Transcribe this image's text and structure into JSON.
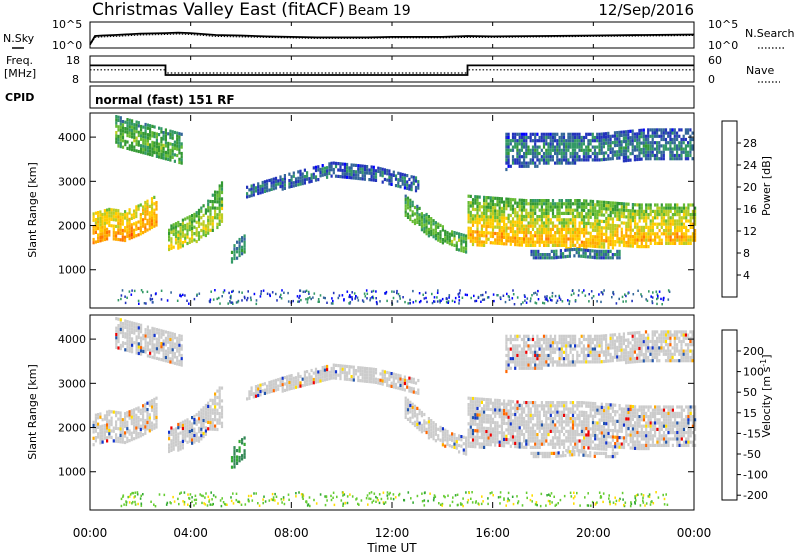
{
  "title": "Christmas Valley East (fitACF)",
  "beam_label": "Beam 19",
  "date": "12/Sep/2016",
  "noise_panel": {
    "left_label": "N.Sky",
    "right_label": "N.Search",
    "left_ticks": [
      "10^5",
      "10^0"
    ],
    "right_ticks": [
      "10^5",
      "10^0"
    ]
  },
  "freq_panel": {
    "left_label_line1": "Freq.",
    "left_label_line2": "[MHz]",
    "right_label": "Nave",
    "left_ticks": [
      "18",
      "8"
    ],
    "right_ticks": [
      "60",
      "0"
    ]
  },
  "cpid": {
    "label": "CPID",
    "value": "normal (fast) 151 RF"
  },
  "chart_data": [
    {
      "type": "line",
      "name": "noise",
      "x_hours": [
        0,
        0.2,
        0.5,
        1,
        2,
        3,
        3.5,
        4,
        5,
        6,
        7,
        8,
        9,
        10,
        11,
        12,
        13,
        14,
        15,
        16,
        18,
        20,
        22,
        24
      ],
      "sky_log": [
        0.5,
        2.3,
        2.4,
        2.5,
        2.8,
        2.9,
        3.0,
        2.9,
        2.5,
        2.4,
        2.2,
        2.1,
        2.0,
        2.0,
        2.0,
        2.1,
        2.1,
        2.1,
        2.3,
        2.2,
        2.3,
        2.4,
        2.5,
        2.6
      ],
      "search_log": [
        0.4,
        2.0,
        2.1,
        2.2,
        2.5,
        2.6,
        2.7,
        2.6,
        2.2,
        2.1,
        2.0,
        1.9,
        1.8,
        1.8,
        1.8,
        1.9,
        1.9,
        1.9,
        2.0,
        2.0,
        2.1,
        2.2,
        2.3,
        2.4
      ]
    },
    {
      "type": "line",
      "name": "frequency",
      "ylim": [
        8,
        18
      ],
      "x_hours": [
        0,
        3.0,
        3.0,
        15.0,
        15.0,
        24
      ],
      "freq_mhz": [
        14.5,
        14.5,
        10.5,
        10.5,
        14.5,
        14.5
      ],
      "nave_x_hours": [
        0,
        3.0,
        3.0,
        15.0,
        15.0,
        24
      ],
      "nave": [
        28,
        28,
        20,
        20,
        28,
        28
      ]
    },
    {
      "type": "heatmap",
      "name": "power",
      "xlabel": "Time UT",
      "ylabel": "Slant Range [km]",
      "xlim": [
        0,
        24
      ],
      "ylim": [
        180,
        4500
      ],
      "x_ticks": [
        "00:00",
        "04:00",
        "08:00",
        "12:00",
        "16:00",
        "20:00",
        "00:00"
      ],
      "y_ticks": [
        1000,
        2000,
        3000,
        4000
      ],
      "colorbar": {
        "label": "Power [dB]",
        "ticks": [
          4,
          8,
          12,
          16,
          20,
          24,
          28
        ],
        "range": [
          0,
          32
        ],
        "colors": [
          "#0000ff",
          "#2233bb",
          "#336699",
          "#339966",
          "#339933",
          "#66bb33",
          "#bbcc22",
          "#ffcc00",
          "#ffaa00",
          "#ff7700",
          "#ff4400",
          "#ee0000"
        ]
      },
      "regions": [
        {
          "t": [
            0.1,
            2.6
          ],
          "r_lo": [
            1600,
            1750,
            1650,
            1800,
            2000
          ],
          "r_hi": [
            2300,
            2400,
            2350,
            2500,
            2700
          ],
          "core": [
            1700,
            1800,
            1750,
            1950,
            2150
          ],
          "p": 24
        },
        {
          "t": [
            3.1,
            5.2
          ],
          "r_lo": [
            1450,
            1550,
            1650,
            1850,
            2050
          ],
          "r_hi": [
            2000,
            2150,
            2300,
            2600,
            3000
          ],
          "core": [
            1600,
            1700,
            1800,
            2000,
            2300
          ],
          "p": 18
        },
        {
          "t": [
            5.6,
            6.1
          ],
          "r_lo": [
            1200,
            1250,
            1300,
            1350,
            1400
          ],
          "r_hi": [
            1500,
            1600,
            1700,
            1750,
            1800
          ],
          "core": [
            1300,
            1350,
            1400,
            1450,
            1500
          ],
          "p": 10
        },
        {
          "t": [
            6.2,
            13.0
          ],
          "r_lo": [
            2650,
            2900,
            3150,
            3050,
            2800
          ],
          "r_hi": [
            2900,
            3200,
            3450,
            3350,
            3100
          ],
          "core": [
            2800,
            3050,
            3300,
            3200,
            2950
          ],
          "p": 7
        },
        {
          "t": [
            12.5,
            14.9
          ],
          "r_lo": [
            2200,
            1900,
            1700,
            1550,
            1400
          ],
          "r_hi": [
            2700,
            2400,
            2100,
            1900,
            1800
          ],
          "core": [
            2400,
            2100,
            1900,
            1700,
            1600
          ],
          "p": 14
        },
        {
          "t": [
            15.0,
            24.0
          ],
          "r_lo": [
            1600,
            1550,
            1500,
            1550,
            1600
          ],
          "r_hi": [
            2700,
            2600,
            2600,
            2500,
            2500
          ],
          "core": [
            1850,
            1750,
            1700,
            1750,
            1800
          ],
          "p": 22
        },
        {
          "t": [
            1.0,
            3.6
          ],
          "r_lo": [
            3800,
            3700,
            3600,
            3500,
            3400
          ],
          "r_hi": [
            4500,
            4400,
            4300,
            4200,
            4100
          ],
          "core": [
            4100,
            4000,
            3900,
            3800,
            3700
          ],
          "p": 14
        },
        {
          "t": [
            16.5,
            23.9
          ],
          "r_lo": [
            3300,
            3400,
            3500,
            3500,
            3500
          ],
          "r_hi": [
            4100,
            4100,
            4100,
            4200,
            4200
          ],
          "core": [
            3700,
            3750,
            3800,
            3800,
            3800
          ],
          "p": 9
        },
        {
          "t": [
            17.5,
            21.0
          ],
          "r_lo": [
            1250,
            1300,
            1350,
            1300,
            1300
          ],
          "r_hi": [
            1450,
            1450,
            1500,
            1450,
            1450
          ],
          "core": [
            1350,
            1380,
            1400,
            1380,
            1370
          ],
          "p": 8
        }
      ]
    },
    {
      "type": "heatmap",
      "name": "velocity",
      "xlabel": "Time UT",
      "ylabel": "Slant Range [km]",
      "xlim": [
        0,
        24
      ],
      "ylim": [
        180,
        4500
      ],
      "x_ticks": [
        "00:00",
        "04:00",
        "08:00",
        "12:00",
        "16:00",
        "20:00",
        "00:00"
      ],
      "y_ticks": [
        1000,
        2000,
        3000,
        4000
      ],
      "colorbar": {
        "label": "Velocity [m s^-1]",
        "ticks": [
          200,
          100,
          50,
          15,
          -15,
          -50,
          -100,
          -200
        ],
        "colors": [
          "#1133cc",
          "#2255aa",
          "#338855",
          "#33aa33",
          "#66cc33",
          "#cccccc",
          "#ffdd00",
          "#ffaa00",
          "#ff6600",
          "#ee0000"
        ]
      },
      "regions": [
        {
          "t": [
            0.1,
            2.6
          ],
          "r_lo": [
            1600,
            1750,
            1650,
            1800,
            2000
          ],
          "r_hi": [
            2300,
            2400,
            2350,
            2500,
            2700
          ],
          "v": 0
        },
        {
          "t": [
            3.1,
            5.2
          ],
          "r_lo": [
            1450,
            1550,
            1650,
            1850,
            2050
          ],
          "r_hi": [
            2000,
            2150,
            2300,
            2600,
            3000
          ],
          "v": 0
        },
        {
          "t": [
            5.6,
            6.1
          ],
          "r_lo": [
            1100,
            1150,
            1200,
            1250,
            1300
          ],
          "r_hi": [
            1500,
            1600,
            1700,
            1750,
            1800
          ],
          "v": 80
        },
        {
          "t": [
            6.2,
            13.0
          ],
          "r_lo": [
            2650,
            2900,
            3150,
            3050,
            2800
          ],
          "r_hi": [
            2900,
            3200,
            3450,
            3350,
            3100
          ],
          "v": 0
        },
        {
          "t": [
            12.5,
            14.9
          ],
          "r_lo": [
            2200,
            1900,
            1700,
            1550,
            1400
          ],
          "r_hi": [
            2700,
            2400,
            2100,
            1900,
            1800
          ],
          "v": 0
        },
        {
          "t": [
            15.0,
            24.0
          ],
          "r_lo": [
            1600,
            1550,
            1500,
            1550,
            1600
          ],
          "r_hi": [
            2700,
            2600,
            2600,
            2500,
            2500
          ],
          "v": 0
        },
        {
          "t": [
            1.0,
            3.6
          ],
          "r_lo": [
            3800,
            3700,
            3600,
            3500,
            3400
          ],
          "r_hi": [
            4500,
            4400,
            4300,
            4200,
            4100
          ],
          "v": 0
        },
        {
          "t": [
            16.5,
            23.9
          ],
          "r_lo": [
            3300,
            3400,
            3500,
            3500,
            3500
          ],
          "r_hi": [
            4100,
            4100,
            4100,
            4200,
            4200
          ],
          "v": 0
        },
        {
          "t": [
            17.5,
            21.0
          ],
          "r_lo": [
            1350,
            1380,
            1400,
            1380,
            1370
          ],
          "r_hi": [
            1450,
            1450,
            1500,
            1450,
            1450
          ],
          "v": 0
        }
      ]
    }
  ]
}
